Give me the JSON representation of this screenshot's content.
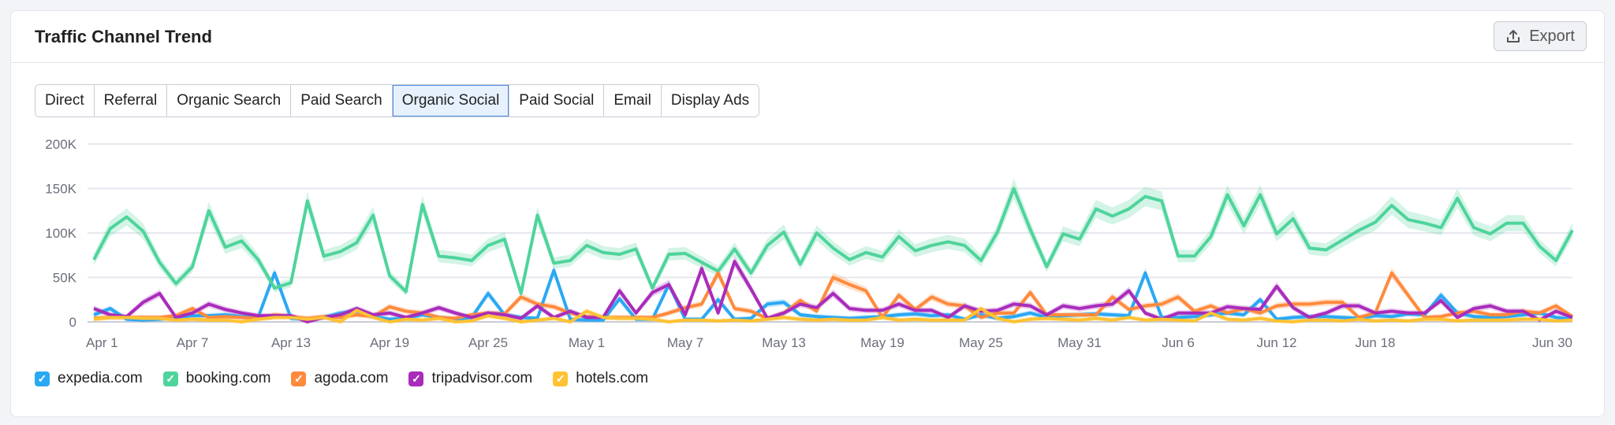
{
  "header": {
    "title": "Traffic Channel Trend",
    "export_label": "Export",
    "export_icon": "upload-icon"
  },
  "tabs": [
    {
      "label": "Direct"
    },
    {
      "label": "Referral"
    },
    {
      "label": "Organic Search"
    },
    {
      "label": "Paid Search"
    },
    {
      "label": "Organic Social",
      "active": true
    },
    {
      "label": "Paid Social"
    },
    {
      "label": "Email"
    },
    {
      "label": "Display Ads"
    }
  ],
  "chart_data": {
    "type": "line",
    "ylim": [
      0,
      200000
    ],
    "y_ticks": [
      {
        "value": 0,
        "label": "0"
      },
      {
        "value": 50000,
        "label": "50K"
      },
      {
        "value": 100000,
        "label": "100K"
      },
      {
        "value": 150000,
        "label": "150K"
      },
      {
        "value": 200000,
        "label": "200K"
      }
    ],
    "x_ticks": [
      "Apr 1",
      "Apr 7",
      "Apr 13",
      "Apr 19",
      "Apr 25",
      "May 1",
      "May 7",
      "May 13",
      "May 19",
      "May 25",
      "May 31",
      "Jun 6",
      "Jun 12",
      "Jun 18",
      "Jun 30"
    ],
    "grid": true,
    "legend_position": "bottom-left",
    "x": [
      "Apr 1",
      "Apr 2",
      "Apr 3",
      "Apr 4",
      "Apr 5",
      "Apr 6",
      "Apr 7",
      "Apr 8",
      "Apr 9",
      "Apr 10",
      "Apr 11",
      "Apr 12",
      "Apr 13",
      "Apr 14",
      "Apr 15",
      "Apr 16",
      "Apr 17",
      "Apr 18",
      "Apr 19",
      "Apr 20",
      "Apr 21",
      "Apr 22",
      "Apr 23",
      "Apr 24",
      "Apr 25",
      "Apr 26",
      "Apr 27",
      "Apr 28",
      "Apr 29",
      "Apr 30",
      "May 1",
      "May 2",
      "May 3",
      "May 4",
      "May 5",
      "May 6",
      "May 7",
      "May 8",
      "May 9",
      "May 10",
      "May 11",
      "May 12",
      "May 13",
      "May 14",
      "May 15",
      "May 16",
      "May 17",
      "May 18",
      "May 19",
      "May 20",
      "May 21",
      "May 22",
      "May 23",
      "May 24",
      "May 25",
      "May 26",
      "May 27",
      "May 28",
      "May 29",
      "May 30",
      "May 31",
      "Jun 1",
      "Jun 2",
      "Jun 3",
      "Jun 4",
      "Jun 5",
      "Jun 6",
      "Jun 7",
      "Jun 8",
      "Jun 9",
      "Jun 10",
      "Jun 11",
      "Jun 12",
      "Jun 13",
      "Jun 14",
      "Jun 15",
      "Jun 16",
      "Jun 17",
      "Jun 18",
      "Jun 19",
      "Jun 20",
      "Jun 21",
      "Jun 22",
      "Jun 23",
      "Jun 24",
      "Jun 25",
      "Jun 26",
      "Jun 27",
      "Jun 28",
      "Jun 29",
      "Jun 30"
    ],
    "series": [
      {
        "name": "expedia.com",
        "color": "#2ba8f4",
        "values": [
          8000,
          15000,
          3000,
          2000,
          3000,
          5000,
          7000,
          7000,
          8000,
          6000,
          5000,
          55000,
          4000,
          3000,
          5000,
          10000,
          12000,
          6000,
          3000,
          4000,
          8000,
          5000,
          3000,
          5000,
          32000,
          8000,
          5000,
          4000,
          58000,
          3000,
          2000,
          2000,
          26000,
          3000,
          3000,
          42000,
          3000,
          3000,
          25000,
          3000,
          4000,
          20000,
          22000,
          8000,
          6000,
          5000,
          4000,
          5000,
          6000,
          8000,
          9000,
          7000,
          8000,
          3000,
          8000,
          4000,
          6000,
          10000,
          5000,
          7000,
          8000,
          9000,
          8000,
          7000,
          55000,
          5000,
          5000,
          6000,
          8000,
          10000,
          8000,
          25000,
          3000,
          5000,
          6000,
          6000,
          5000,
          4000,
          7000,
          6000,
          9000,
          8000,
          30000,
          10000,
          6000,
          5000,
          6000,
          8000,
          10000,
          5000,
          3000
        ]
      },
      {
        "name": "booking.com",
        "color": "#4ed49b",
        "values": [
          70000,
          105000,
          118000,
          102000,
          67000,
          43000,
          62000,
          125000,
          84000,
          91000,
          70000,
          38000,
          44000,
          136000,
          74000,
          79000,
          89000,
          120000,
          52000,
          34000,
          132000,
          74000,
          72000,
          69000,
          86000,
          93000,
          32000,
          120000,
          66000,
          69000,
          86000,
          78000,
          76000,
          82000,
          38000,
          76000,
          77000,
          67000,
          57000,
          82000,
          55000,
          86000,
          101000,
          65000,
          100000,
          83000,
          70000,
          78000,
          73000,
          96000,
          80000,
          86000,
          90000,
          86000,
          69000,
          101000,
          150000,
          104000,
          62000,
          99000,
          93000,
          127000,
          119000,
          127000,
          141000,
          136000,
          74000,
          74000,
          96000,
          143000,
          108000,
          143000,
          99000,
          116000,
          83000,
          81000,
          92000,
          103000,
          112000,
          131000,
          115000,
          111000,
          106000,
          139000,
          106000,
          99000,
          111000,
          111000,
          85000,
          69000,
          103000
        ]
      },
      {
        "name": "agoda.com",
        "color": "#ff8a3d",
        "values": [
          4000,
          5000,
          5000,
          5000,
          5000,
          7000,
          15000,
          5000,
          6000,
          5000,
          4000,
          8000,
          6000,
          4000,
          6000,
          5000,
          8000,
          6000,
          17000,
          12000,
          10000,
          5000,
          4000,
          8000,
          10000,
          9000,
          28000,
          20000,
          17000,
          10000,
          6000,
          5000,
          5000,
          5000,
          5000,
          10000,
          16000,
          20000,
          55000,
          15000,
          12000,
          4000,
          10000,
          24000,
          12000,
          50000,
          42000,
          35000,
          5000,
          30000,
          14000,
          28000,
          20000,
          18000,
          5000,
          10000,
          10000,
          33000,
          8000,
          8000,
          8000,
          8000,
          28000,
          14000,
          18000,
          20000,
          28000,
          12000,
          18000,
          10000,
          15000,
          10000,
          18000,
          20000,
          20000,
          22000,
          22000,
          5000,
          10000,
          55000,
          30000,
          5000,
          6000,
          10000,
          12000,
          8000,
          8000,
          12000,
          10000,
          18000,
          6000
        ]
      },
      {
        "name": "tripadvisor.com",
        "color": "#a92cbb",
        "values": [
          15000,
          8000,
          6000,
          22000,
          32000,
          5000,
          10000,
          20000,
          14000,
          10000,
          7000,
          7000,
          7000,
          0,
          5000,
          8000,
          15000,
          8000,
          10000,
          5000,
          10000,
          16000,
          10000,
          5000,
          10000,
          8000,
          4000,
          18000,
          5000,
          12000,
          5000,
          5000,
          35000,
          10000,
          33000,
          42000,
          8000,
          60000,
          10000,
          68000,
          37000,
          4000,
          10000,
          20000,
          16000,
          32000,
          15000,
          13000,
          13000,
          20000,
          13000,
          13000,
          5000,
          18000,
          12000,
          13000,
          20000,
          18000,
          8000,
          18000,
          15000,
          18000,
          20000,
          35000,
          10000,
          3000,
          10000,
          10000,
          10000,
          17000,
          15000,
          14000,
          40000,
          16000,
          5000,
          10000,
          18000,
          18000,
          10000,
          12000,
          10000,
          10000,
          24000,
          5000,
          15000,
          18000,
          12000,
          12000,
          2000,
          12000,
          5000
        ]
      },
      {
        "name": "hotels.com",
        "color": "#ffc233",
        "values": [
          3000,
          5000,
          5000,
          4000,
          4000,
          2000,
          3000,
          2000,
          2000,
          0,
          3000,
          5000,
          5000,
          3000,
          5000,
          0,
          13000,
          5000,
          0,
          3000,
          2000,
          4000,
          0,
          1000,
          7000,
          4000,
          0,
          2000,
          4000,
          0,
          12000,
          5000,
          4000,
          4000,
          3000,
          0,
          2000,
          2000,
          1000,
          2000,
          1000,
          3000,
          5000,
          3000,
          2000,
          3000,
          2000,
          2000,
          5000,
          2000,
          3000,
          2000,
          2000,
          2000,
          15000,
          4000,
          0,
          3000,
          4000,
          3000,
          2000,
          4000,
          2000,
          5000,
          2000,
          3000,
          2000,
          1000,
          10000,
          3000,
          2000,
          4000,
          1000,
          0,
          2000,
          2000,
          1000,
          3000,
          1000,
          2000,
          1000,
          3000,
          3000,
          1000,
          2000,
          2000,
          2000,
          3000,
          3000,
          1000,
          2000
        ]
      }
    ]
  }
}
